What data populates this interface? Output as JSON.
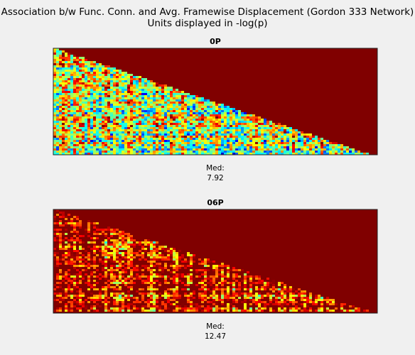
{
  "header": {
    "title": "Association b/w Func. Conn. and Avg. Framewise Displacement (Gordon 333 Network)",
    "subtitle": "Units displayed in -log(p)"
  },
  "panels": [
    {
      "title": "0P",
      "median_label": "Med:",
      "median": 7.92
    },
    {
      "title": "06P",
      "median_label": "Med:",
      "median": 12.47
    }
  ]
}
